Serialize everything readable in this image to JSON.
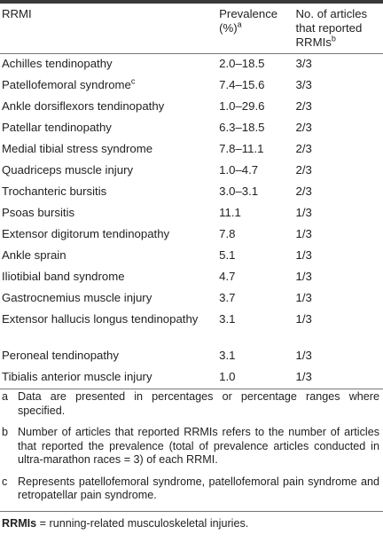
{
  "table": {
    "headers": {
      "rrmi": "RRMI",
      "prevalence": "Prevalence (%)",
      "prevalence_sup": "a",
      "articles": "No. of articles that reported RRMIs",
      "articles_sup": "b"
    },
    "rows": [
      {
        "rrmi": "Achilles tendinopathy",
        "sup": "",
        "prevalence": "2.0–18.5",
        "articles": "3/3"
      },
      {
        "rrmi": "Patellofemoral syndrome",
        "sup": "c",
        "prevalence": "7.4–15.6",
        "articles": "3/3"
      },
      {
        "rrmi": "Ankle dorsiflexors tendinopathy",
        "sup": "",
        "prevalence": "1.0–29.6",
        "articles": "2/3"
      },
      {
        "rrmi": "Patellar tendinopathy",
        "sup": "",
        "prevalence": "6.3–18.5",
        "articles": "2/3"
      },
      {
        "rrmi": "Medial tibial stress syndrome",
        "sup": "",
        "prevalence": "7.8–11.1",
        "articles": "2/3"
      },
      {
        "rrmi": "Quadriceps muscle injury",
        "sup": "",
        "prevalence": "1.0–4.7",
        "articles": "2/3"
      },
      {
        "rrmi": "Trochanteric bursitis",
        "sup": "",
        "prevalence": "3.0–3.1",
        "articles": "2/3"
      },
      {
        "rrmi": "Psoas bursitis",
        "sup": "",
        "prevalence": "11.1",
        "articles": "1/3"
      },
      {
        "rrmi": "Extensor digitorum tendinopathy",
        "sup": "",
        "prevalence": "7.8",
        "articles": "1/3"
      },
      {
        "rrmi": "Ankle sprain",
        "sup": "",
        "prevalence": "5.1",
        "articles": "1/3"
      },
      {
        "rrmi": "Iliotibial band syndrome",
        "sup": "",
        "prevalence": "4.7",
        "articles": "1/3"
      },
      {
        "rrmi": "Gastrocnemius muscle injury",
        "sup": "",
        "prevalence": "3.7",
        "articles": "1/3"
      },
      {
        "rrmi": "Extensor hallucis longus tendinopathy",
        "sup": "",
        "prevalence": "3.1",
        "articles": "1/3"
      },
      {
        "rrmi": "Peroneal tendinopathy",
        "sup": "",
        "prevalence": "3.1",
        "articles": "1/3"
      },
      {
        "rrmi": "Tibialis anterior muscle injury",
        "sup": "",
        "prevalence": "1.0",
        "articles": "1/3"
      }
    ]
  },
  "footnotes": [
    {
      "mark": "a",
      "text": "Data are presented in percentages or percentage ranges where specified."
    },
    {
      "mark": "b",
      "text": "Number of articles that reported RRMIs refers to the number of articles that reported the prevalence (total of prevalence articles conducted in ultra-marathon races = 3) of each RRMI."
    },
    {
      "mark": "c",
      "text": "Represents patellofemoral syndrome, patellofemoral pain syndrome and retropatellar pain syndrome."
    }
  ],
  "abbreviation": {
    "term": "RRMIs",
    "definition": " = running-related musculoskeletal injuries."
  }
}
